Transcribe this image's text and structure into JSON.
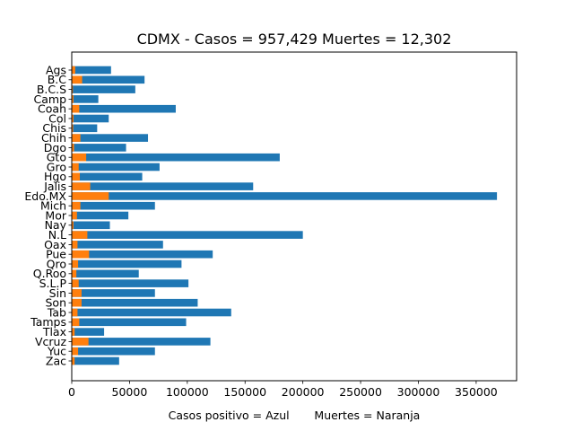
{
  "chart_data": {
    "type": "bar",
    "orientation": "horizontal",
    "title": "CDMX - Casos = 957,429   Muertes = 12,302",
    "xlabel": "Casos positivo = Azul       Muertes = Naranja",
    "ylabel": "",
    "xlim": [
      0,
      385000
    ],
    "xticks": [
      0,
      50000,
      100000,
      150000,
      200000,
      250000,
      300000,
      350000
    ],
    "xtick_labels": [
      "0",
      "50000",
      "100000",
      "150000",
      "200000",
      "250000",
      "300000",
      "350000"
    ],
    "grid": false,
    "categories": [
      "Ags",
      "B.C",
      "B.C.S",
      "Camp",
      "Coah",
      "Col",
      "Chis",
      "Chih",
      "Dgo",
      "Gto",
      "Gro",
      "Hgo",
      "Jalis",
      "Edo.MX",
      "Mich",
      "Mor",
      "Nay",
      "N.L",
      "Oax",
      "Pue",
      "Qro",
      "Q.Roo",
      "S.L.P",
      "Sin",
      "Son",
      "Tab",
      "Tamps",
      "Tlax",
      "Vcruz",
      "Yuc",
      "Zac"
    ],
    "series": [
      {
        "color": "#1f77b4",
        "values": [
          34000,
          63000,
          55000,
          23000,
          90000,
          32000,
          22000,
          66000,
          47000,
          180000,
          76000,
          61000,
          157000,
          368000,
          72000,
          49000,
          33000,
          200000,
          79000,
          122000,
          95000,
          58000,
          101000,
          72000,
          109000,
          138000,
          99000,
          28000,
          120000,
          72000,
          41000
        ]
      },
      {
        "color": "#ff7f0e",
        "values": [
          3000,
          9000,
          1000,
          1500,
          6500,
          1500,
          1200,
          7500,
          2000,
          12500,
          6000,
          7000,
          16000,
          32000,
          7500,
          4500,
          1500,
          13500,
          5000,
          15000,
          5500,
          4000,
          6000,
          8500,
          8500,
          5000,
          6500,
          2500,
          14500,
          5500,
          2500
        ]
      }
    ]
  }
}
